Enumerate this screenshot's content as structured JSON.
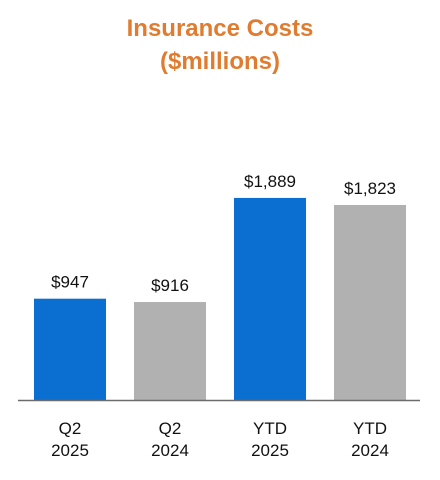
{
  "chart_data": {
    "type": "bar",
    "title_line1": "Insurance Costs",
    "title_line2": "($millions)",
    "categories": [
      [
        "Q2",
        "2025"
      ],
      [
        "Q2",
        "2024"
      ],
      [
        "YTD",
        "2025"
      ],
      [
        "YTD",
        "2024"
      ]
    ],
    "values": [
      947,
      916,
      1889,
      1823
    ],
    "value_labels": [
      "$947",
      "$916",
      "$1,889",
      "$1,823"
    ],
    "bar_colors": [
      "#0a6fd1",
      "#b1b1b1",
      "#0a6fd1",
      "#b1b1b1"
    ],
    "ylim": [
      0,
      2150
    ],
    "grid": false,
    "legend": "none"
  },
  "colors": {
    "title": "#e07c30",
    "axis": "#6b6b6b"
  }
}
